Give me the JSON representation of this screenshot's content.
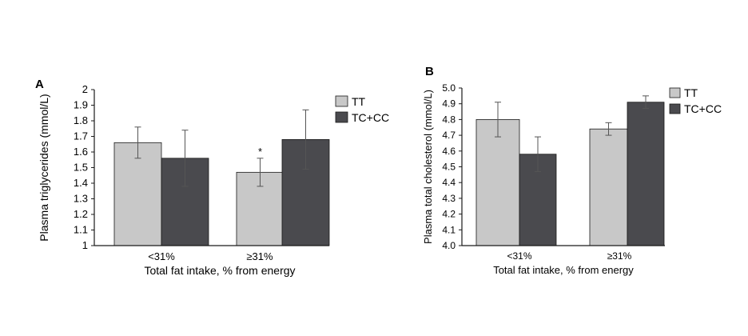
{
  "colors": {
    "TT": "#c8c8c8",
    "TC+CC": "#4a4a4e",
    "bar_outline": "#1a1a1a",
    "axis": "#1a1a1a",
    "error_bar": "#555555"
  },
  "chart_data": [
    {
      "panel": "A",
      "type": "bar",
      "categories": [
        "<31%",
        "≥31%"
      ],
      "series": [
        {
          "name": "TT",
          "values": [
            1.66,
            1.47
          ],
          "errors": [
            0.1,
            0.09
          ]
        },
        {
          "name": "TC+CC",
          "values": [
            1.56,
            1.68
          ],
          "errors": [
            0.18,
            0.19
          ]
        }
      ],
      "xlabel": "Total fat intake, % from energy",
      "ylabel": "Plasma triglycerides (mmol/L)",
      "ylim": [
        1,
        2
      ],
      "yticks": [
        "1",
        "1.1",
        "1.2",
        "1.3",
        "1.4",
        "1.5",
        "1.6",
        "1.7",
        "1.8",
        "1.9",
        "2"
      ],
      "annotations": [
        {
          "text": "*",
          "category": "≥31%",
          "series": "TT"
        }
      ],
      "legend": "top-right",
      "grid": false
    },
    {
      "panel": "B",
      "type": "bar",
      "categories": [
        "<31%",
        "≥31%"
      ],
      "series": [
        {
          "name": "TT",
          "values": [
            4.8,
            4.74
          ],
          "errors": [
            0.11,
            0.04
          ]
        },
        {
          "name": "TC+CC",
          "values": [
            4.58,
            4.91
          ],
          "errors": [
            0.11,
            0.04
          ]
        }
      ],
      "xlabel": "Total fat intake, % from energy",
      "ylabel": "Plasma total cholesterol (mmol/L)",
      "ylim": [
        4,
        5
      ],
      "yticks": [
        "4.0",
        "4.1",
        "4.2",
        "4.3",
        "4.4",
        "4.5",
        "4.6",
        "4.7",
        "4.8",
        "4.9",
        "5.0"
      ],
      "annotations": [],
      "legend": "top-right",
      "grid": false
    }
  ]
}
